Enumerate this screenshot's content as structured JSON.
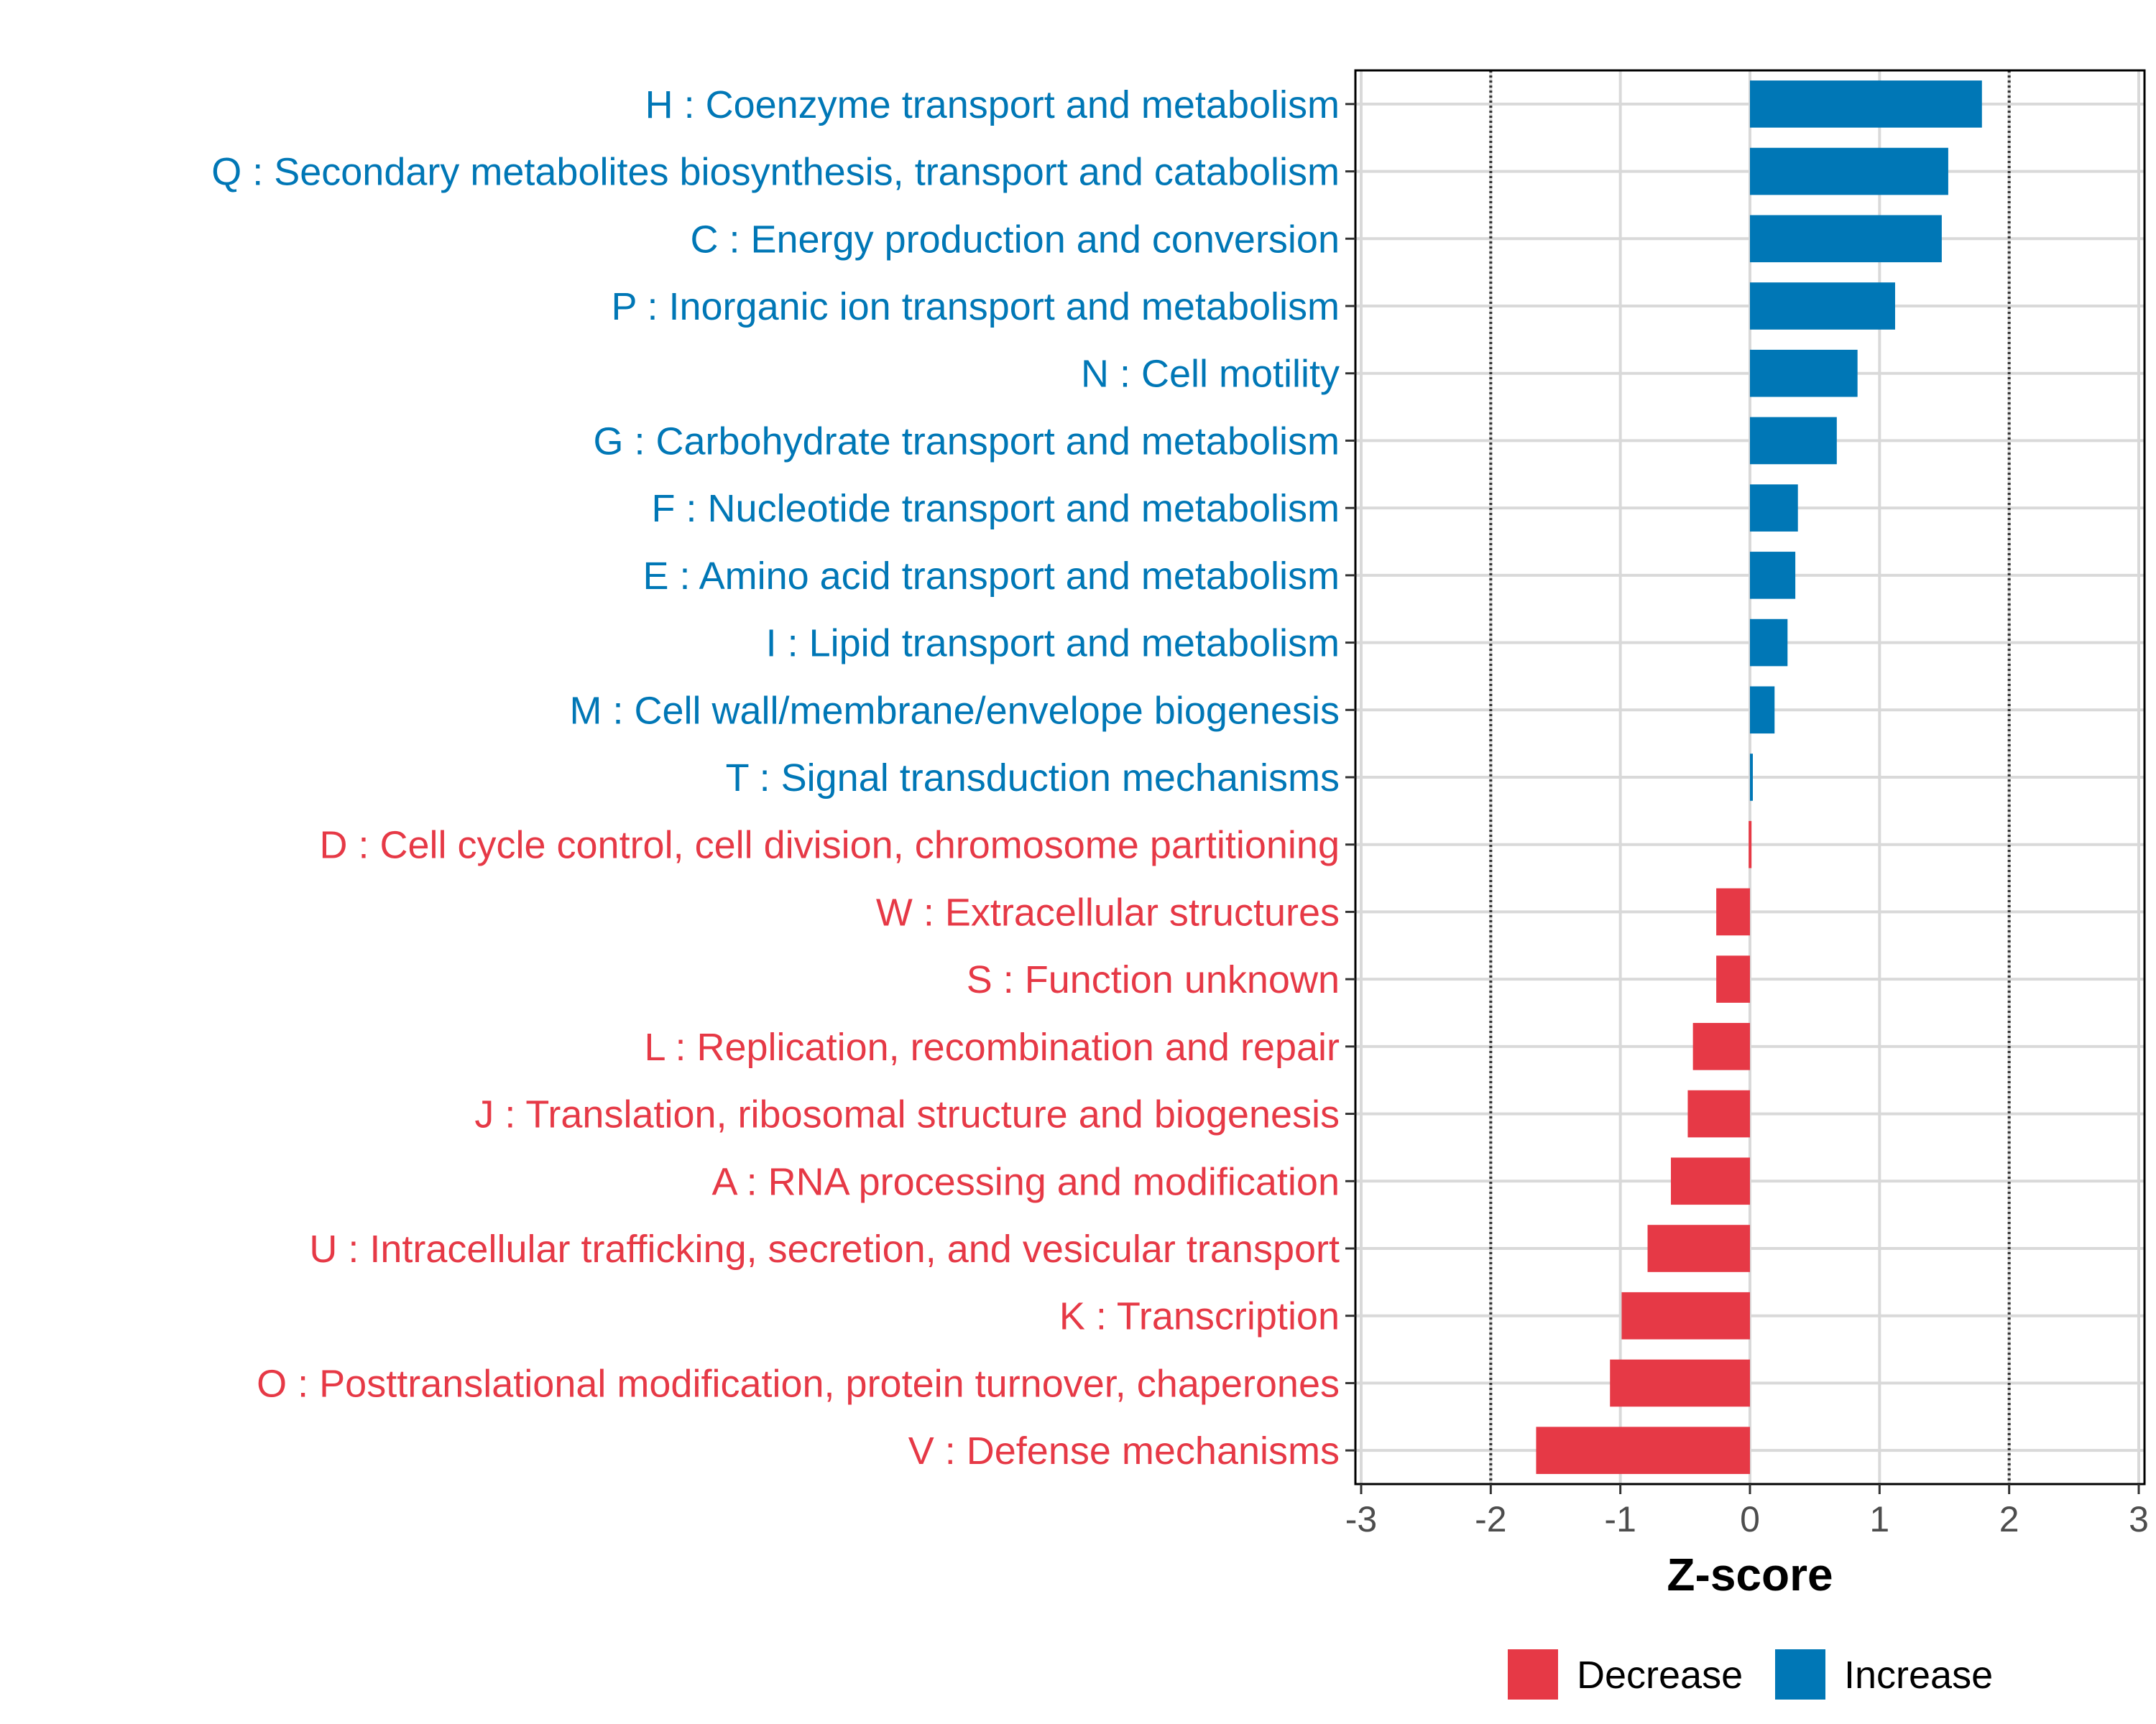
{
  "chart_data": {
    "type": "bar",
    "orientation": "horizontal",
    "title": "",
    "xlabel": "Z-score",
    "ylabel": "",
    "xlim": [
      -3,
      3
    ],
    "xticks": [
      -3,
      -2,
      -1,
      0,
      1,
      2,
      3
    ],
    "tick_labels": [
      "-3",
      "-2",
      "-1",
      "0",
      "1",
      "2",
      "3"
    ],
    "threshold_lines": [
      -2,
      2
    ],
    "categories": [
      "H : Coenzyme transport and metabolism",
      "Q : Secondary metabolites biosynthesis, transport and catabolism",
      "C : Energy production and conversion",
      "P : Inorganic ion transport and metabolism",
      "N : Cell motility",
      "G : Carbohydrate transport and metabolism",
      "F : Nucleotide transport and metabolism",
      "E : Amino acid transport and metabolism",
      "I : Lipid transport and metabolism",
      "M : Cell wall/membrane/envelope biogenesis",
      "T : Signal transduction mechanisms",
      "D : Cell cycle control, cell division, chromosome partitioning",
      "W : Extracellular structures",
      "S : Function unknown",
      "L : Replication, recombination and repair",
      "J : Translation, ribosomal structure and biogenesis",
      "A : RNA processing and modification",
      "U : Intracellular trafficking, secretion, and vesicular transport",
      "K : Transcription",
      "O : Posttranslational modification, protein turnover, chaperones",
      "V : Defense mechanisms"
    ],
    "values": [
      1.79,
      1.53,
      1.48,
      1.12,
      0.83,
      0.67,
      0.37,
      0.35,
      0.29,
      0.19,
      0.02,
      -0.01,
      -0.26,
      -0.26,
      -0.44,
      -0.48,
      -0.61,
      -0.79,
      -0.99,
      -1.08,
      -1.65
    ],
    "groups": [
      "Increase",
      "Increase",
      "Increase",
      "Increase",
      "Increase",
      "Increase",
      "Increase",
      "Increase",
      "Increase",
      "Increase",
      "Increase",
      "Decrease",
      "Decrease",
      "Decrease",
      "Decrease",
      "Decrease",
      "Decrease",
      "Decrease",
      "Decrease",
      "Decrease",
      "Decrease"
    ],
    "legend": {
      "position": "bottom",
      "entries": [
        {
          "label": "Decrease",
          "color": "#E63946"
        },
        {
          "label": "Increase",
          "color": "#0077B6"
        }
      ]
    },
    "grid": true
  }
}
